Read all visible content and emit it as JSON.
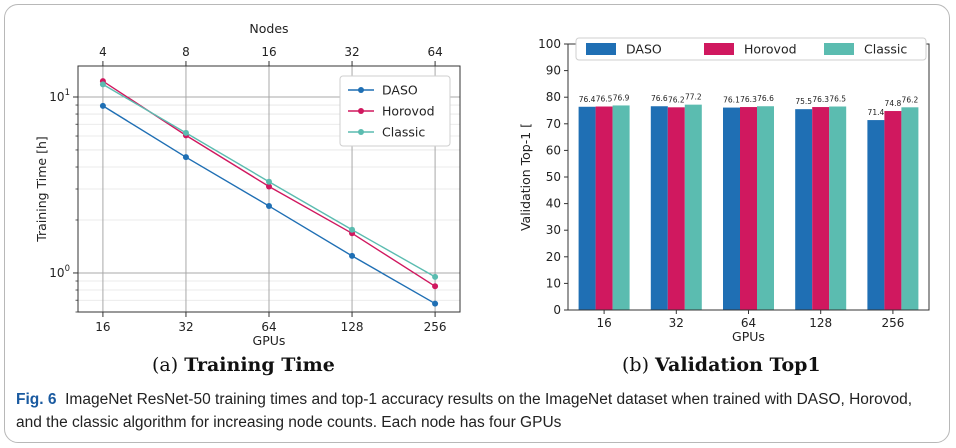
{
  "chart_data": [
    {
      "type": "line",
      "title": "",
      "xlabel": "GPUs",
      "x2label": "Nodes",
      "ylabel": "Training Time [h]",
      "yscale": "log",
      "xscale": "log2",
      "x": [
        16,
        32,
        64,
        128,
        256
      ],
      "x_ticklabels": [
        "16",
        "32",
        "64",
        "128",
        "256"
      ],
      "x2_ticklabels": [
        "4",
        "8",
        "16",
        "32",
        "64"
      ],
      "y_ticklabels": [
        "10^0",
        "10^1"
      ],
      "ylim": [
        0.6,
        15
      ],
      "grid": true,
      "legend": "upper-right",
      "series": [
        {
          "name": "DASO",
          "color": "#1f6fb4",
          "values": [
            8.9,
            4.55,
            2.4,
            1.25,
            0.67
          ]
        },
        {
          "name": "Horovod",
          "color": "#d0185f",
          "values": [
            12.3,
            6.05,
            3.1,
            1.68,
            0.84
          ]
        },
        {
          "name": "Classic",
          "color": "#5bbcb0",
          "values": [
            11.8,
            6.25,
            3.3,
            1.76,
            0.95
          ]
        }
      ]
    },
    {
      "type": "bar",
      "title": "",
      "xlabel": "GPUs",
      "ylabel": "Validation Top-1 [",
      "categories": [
        "16",
        "32",
        "64",
        "128",
        "256"
      ],
      "ylim": [
        0,
        100
      ],
      "y_ticks": [
        0,
        10,
        20,
        30,
        40,
        50,
        60,
        70,
        80,
        90,
        100
      ],
      "legend": "top",
      "series": [
        {
          "name": "DASO",
          "color": "#1f6fb4",
          "values": [
            76.4,
            76.6,
            76.1,
            75.5,
            71.4
          ]
        },
        {
          "name": "Horovod",
          "color": "#d0185f",
          "values": [
            76.5,
            76.2,
            76.3,
            76.3,
            74.8
          ]
        },
        {
          "name": "Classic",
          "color": "#5bbcb0",
          "values": [
            76.9,
            77.2,
            76.6,
            76.5,
            76.2
          ]
        }
      ],
      "data_labels": [
        [
          "76.4",
          "76.5",
          "76.9"
        ],
        [
          "76.6",
          "76.2",
          "77.2"
        ],
        [
          "76.1",
          "76.3",
          "76.6"
        ],
        [
          "75.5",
          "76.3",
          "76.5"
        ],
        [
          "71.4",
          "74.8",
          "76.2"
        ]
      ]
    }
  ],
  "subcaptions": {
    "a_prefix": "(a)",
    "a_title": "Training Time",
    "b_prefix": "(b)",
    "b_title": "Validation Top1"
  },
  "caption": {
    "label": "Fig. 6",
    "text": "ImageNet ResNet-50 training times and top-1 accuracy results on the ImageNet dataset when trained with DASO, Horovod, and the classic algorithm for increasing node counts. Each node has four GPUs"
  }
}
